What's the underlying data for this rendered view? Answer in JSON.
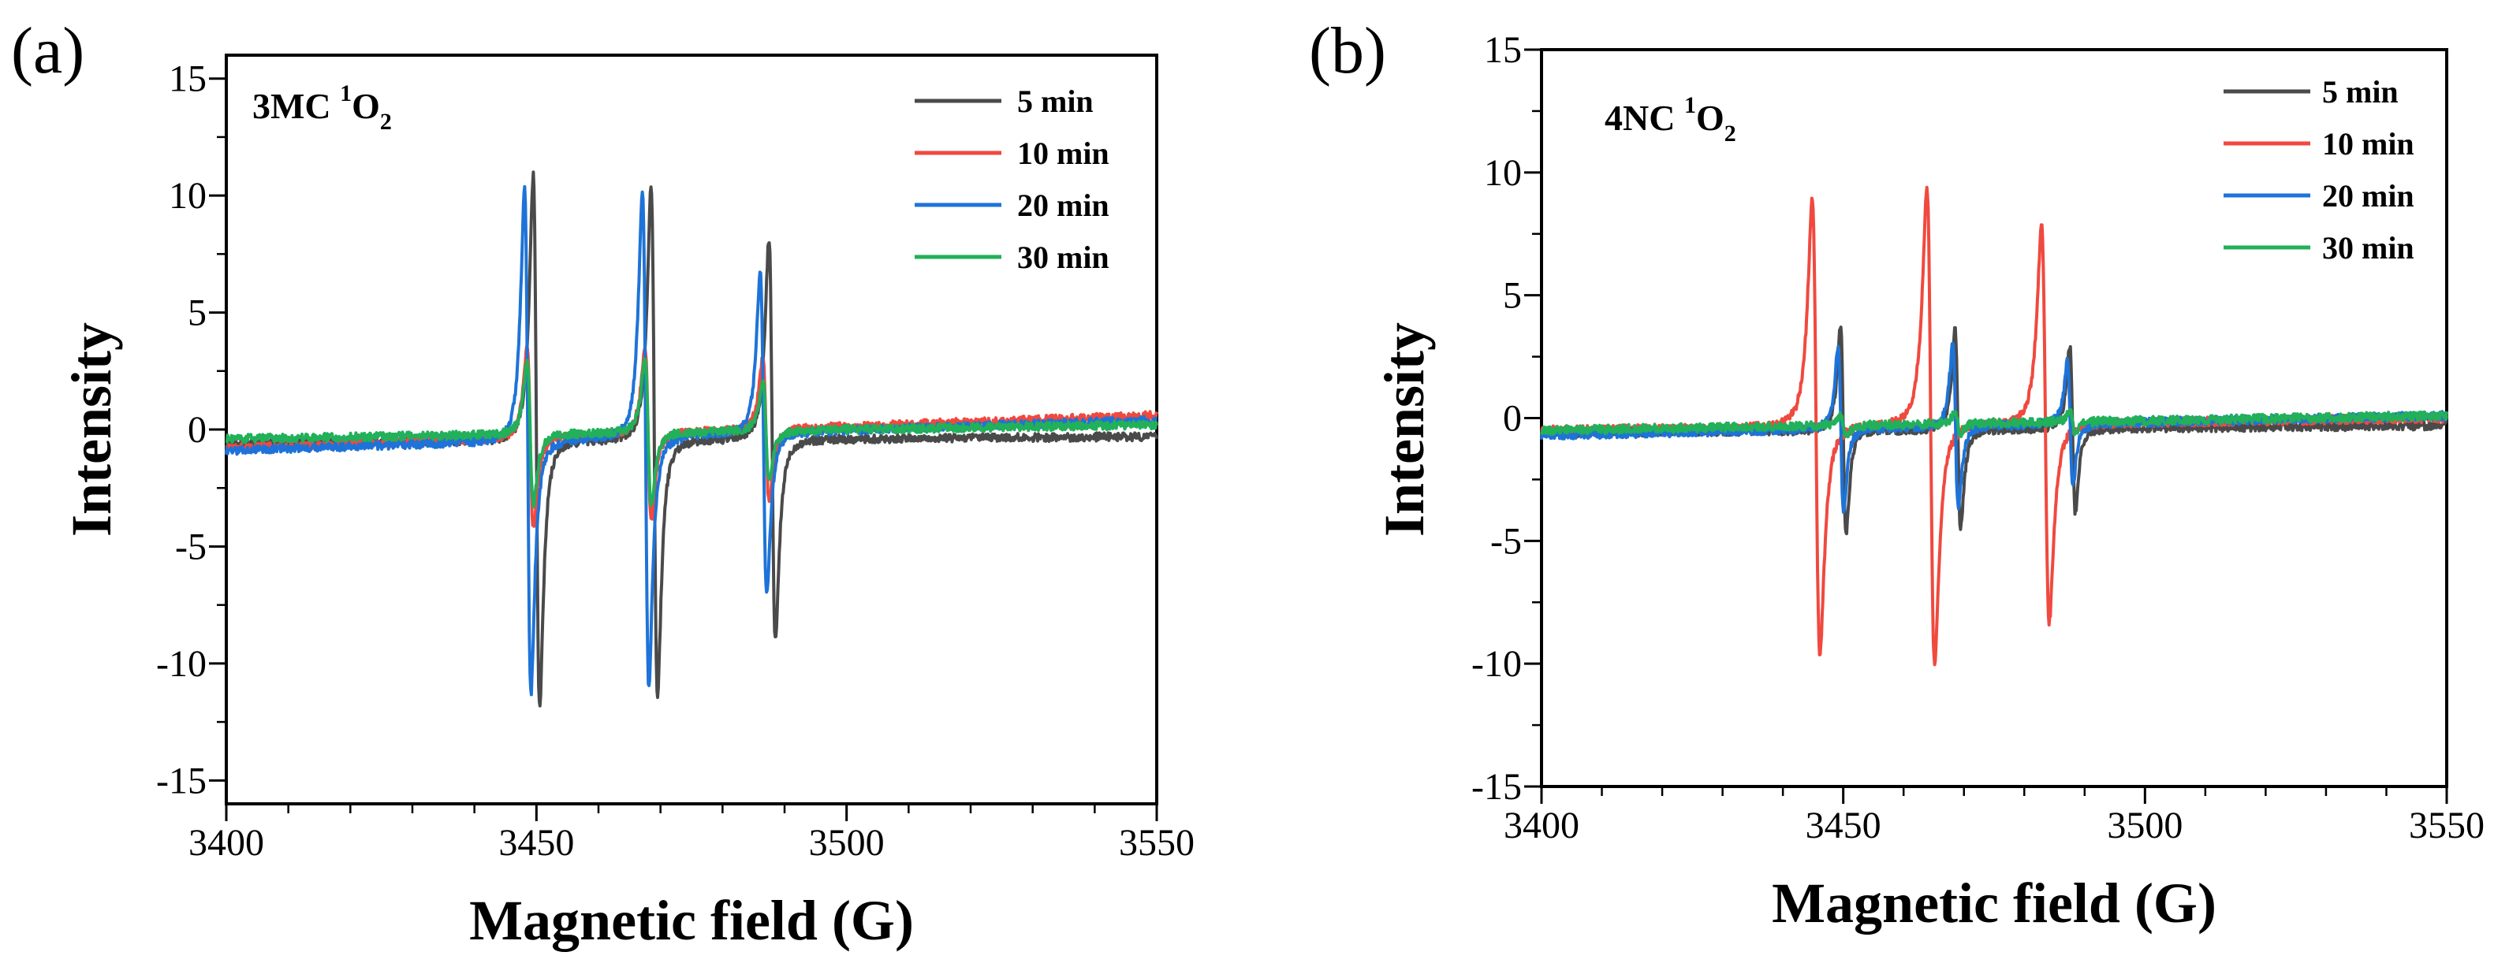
{
  "figure": {
    "panel_labels": [
      "(a)",
      "(b)"
    ]
  },
  "chart_data": [
    {
      "type": "line",
      "panel": "(a)",
      "annotation": {
        "base": "3MC ",
        "sup": "1",
        "main": "O",
        "sub": "2"
      },
      "xlabel": "Magnetic field (G)",
      "ylabel": "Intensity",
      "xlim": [
        3400,
        3550
      ],
      "ylim": [
        -16,
        16
      ],
      "xticks": [
        3400,
        3450,
        3500,
        3550
      ],
      "yticks": [
        -15,
        -10,
        -5,
        0,
        5,
        10,
        15
      ],
      "legend_position": "top-right",
      "baseline": {
        "left": -0.3,
        "right": 0.2
      },
      "line_positions": [
        3449,
        3468,
        3487
      ],
      "series": [
        {
          "name": "5 min",
          "color": "#4a4a4a",
          "offset": 1.0,
          "amplitudes": [
            13.5,
            13.0,
            10.2
          ],
          "width": 0.9,
          "baseline_left": -0.6,
          "baseline_right": -0.3
        },
        {
          "name": "10 min",
          "color": "#f0493f",
          "offset": 0.0,
          "amplitudes": [
            4.6,
            4.4,
            3.6
          ],
          "width": 0.9,
          "baseline_left": -0.8,
          "baseline_right": 0.6
        },
        {
          "name": "20 min",
          "color": "#1e73d8",
          "offset": -0.4,
          "amplitudes": [
            12.8,
            12.6,
            8.2
          ],
          "width": 0.9,
          "baseline_left": -0.9,
          "baseline_right": 0.4
        },
        {
          "name": "30 min",
          "color": "#22b05a",
          "offset": 0.0,
          "amplitudes": [
            3.6,
            3.8,
            2.6
          ],
          "width": 0.9,
          "baseline_left": -0.4,
          "baseline_right": 0.2
        }
      ]
    },
    {
      "type": "line",
      "panel": "(b)",
      "annotation": {
        "base": "4NC ",
        "sup": "1",
        "main": "O",
        "sub": "2"
      },
      "xlabel": "Magnetic field (G)",
      "ylabel": "Intensity",
      "xlim": [
        3400,
        3550
      ],
      "ylim": [
        -15,
        15
      ],
      "xticks": [
        3400,
        3450,
        3500,
        3550
      ],
      "yticks": [
        -15,
        -10,
        -5,
        0,
        5,
        10,
        15
      ],
      "legend_position": "top-right",
      "line_positions": [
        3450,
        3469,
        3488
      ],
      "series": [
        {
          "name": "5 min",
          "color": "#4a4a4a",
          "offset": 0.0,
          "amplitudes": [
            5.0,
            4.8,
            4.0
          ],
          "width": 0.8,
          "baseline_left": -0.6,
          "baseline_right": -0.3
        },
        {
          "name": "10 min",
          "color": "#f0493f",
          "offset": -4.5,
          "amplitudes": [
            11.0,
            11.5,
            9.6
          ],
          "width": 1.1,
          "baseline_left": -0.5,
          "baseline_right": 0.0
        },
        {
          "name": "20 min",
          "color": "#1e73d8",
          "offset": -0.4,
          "amplitudes": [
            4.0,
            4.0,
            3.0
          ],
          "width": 0.8,
          "baseline_left": -0.7,
          "baseline_right": 0.1
        },
        {
          "name": "30 min",
          "color": "#22b05a",
          "offset": 0.0,
          "amplitudes": [
            0.5,
            0.5,
            0.5
          ],
          "width": 0.8,
          "baseline_left": -0.5,
          "baseline_right": 0.1
        }
      ]
    }
  ]
}
